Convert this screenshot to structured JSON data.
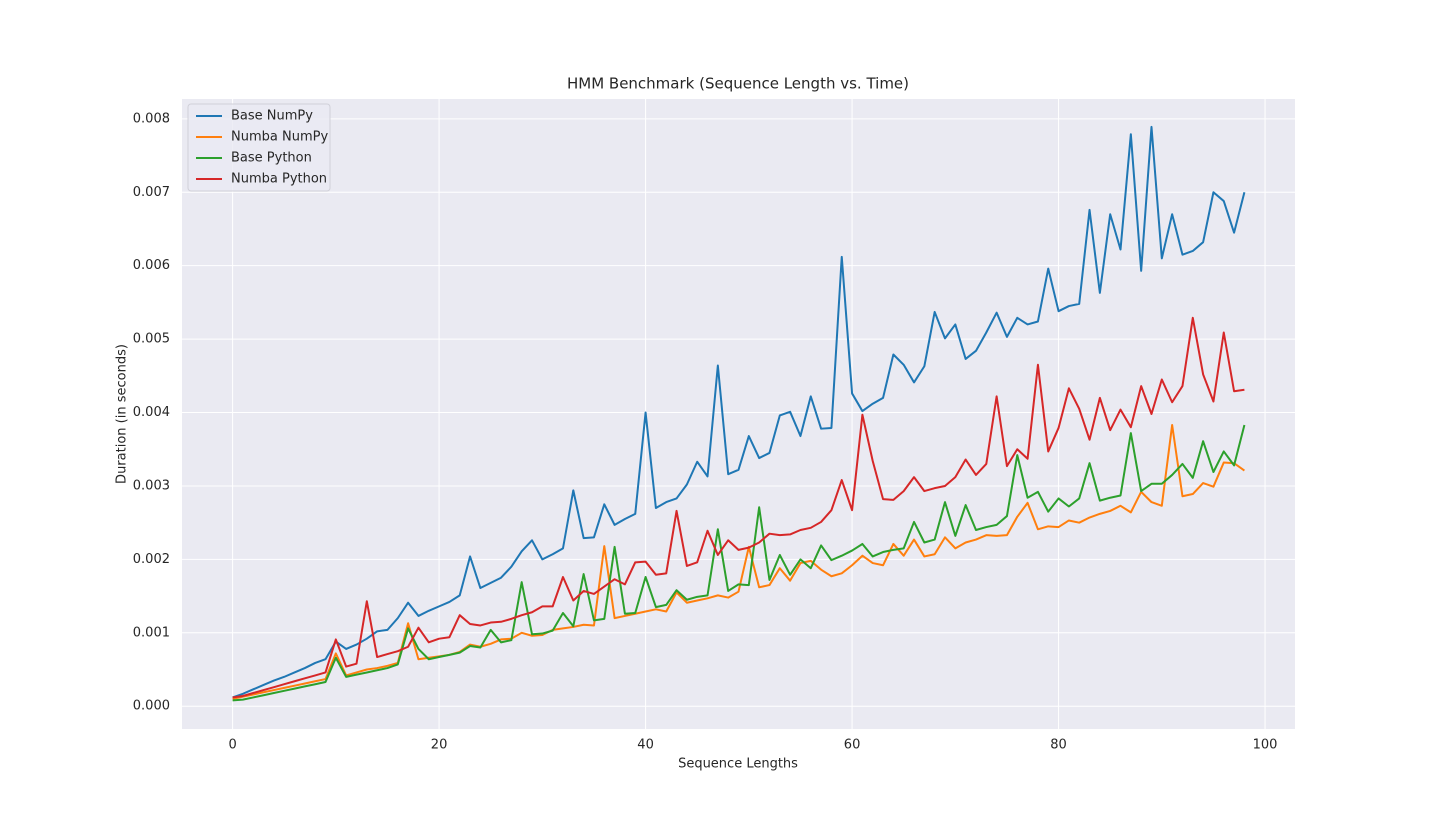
{
  "chart_data": {
    "type": "line",
    "title": "HMM Benchmark (Sequence Length vs. Time)",
    "x_label": "Sequence Lengths",
    "y_label": "Duration (in seconds)",
    "xlim": [
      -4.9,
      102.9
    ],
    "ylim": [
      -0.00031,
      0.00827
    ],
    "xticks": [
      0,
      20,
      40,
      60,
      80,
      100
    ],
    "yticks": [
      {
        "value": 0,
        "label": "0.000"
      },
      {
        "value": 0.001,
        "label": "0.001"
      },
      {
        "value": 0.002,
        "label": "0.002"
      },
      {
        "value": 0.003,
        "label": "0.003"
      },
      {
        "value": 0.004,
        "label": "0.004"
      },
      {
        "value": 0.005,
        "label": "0.005"
      },
      {
        "value": 0.006,
        "label": "0.006"
      },
      {
        "value": 0.007,
        "label": "0.007"
      },
      {
        "value": 0.008,
        "label": "0.008"
      }
    ],
    "grid": true,
    "legend": "upper left",
    "x": [
      0,
      1,
      2,
      3,
      4,
      5,
      6,
      7,
      8,
      9,
      10,
      11,
      12,
      13,
      14,
      15,
      16,
      17,
      18,
      19,
      20,
      21,
      22,
      23,
      24,
      25,
      26,
      27,
      28,
      29,
      30,
      31,
      32,
      33,
      34,
      35,
      36,
      37,
      38,
      39,
      40,
      41,
      42,
      43,
      44,
      45,
      46,
      47,
      48,
      49,
      50,
      51,
      52,
      53,
      54,
      55,
      56,
      57,
      58,
      59,
      60,
      61,
      62,
      63,
      64,
      65,
      66,
      67,
      68,
      69,
      70,
      71,
      72,
      73,
      74,
      75,
      76,
      77,
      78,
      79,
      80,
      81,
      82,
      83,
      84,
      85,
      86,
      87,
      88,
      89,
      90,
      91,
      92,
      93,
      94,
      95,
      96,
      97,
      98
    ],
    "series": [
      {
        "name": "Base NumPy",
        "color": "#1f77b4",
        "values": [
          0.00012,
          0.00017,
          0.00023,
          0.00029,
          0.00035,
          0.0004,
          0.00046,
          0.00052,
          0.00059,
          0.00064,
          0.00088,
          0.00078,
          0.00084,
          0.00092,
          0.00102,
          0.00104,
          0.0012,
          0.00141,
          0.00123,
          0.0013,
          0.00136,
          0.00142,
          0.00151,
          0.00204,
          0.00161,
          0.00168,
          0.00175,
          0.0019,
          0.00211,
          0.00226,
          0.002,
          0.00207,
          0.00215,
          0.00294,
          0.00229,
          0.0023,
          0.00275,
          0.00247,
          0.00255,
          0.00262,
          0.004,
          0.0027,
          0.00278,
          0.00283,
          0.00302,
          0.00333,
          0.00313,
          0.00464,
          0.00316,
          0.00322,
          0.00368,
          0.00338,
          0.00345,
          0.00396,
          0.00401,
          0.00368,
          0.00422,
          0.00378,
          0.00379,
          0.00612,
          0.00426,
          0.00402,
          0.00412,
          0.0042,
          0.00479,
          0.00465,
          0.00441,
          0.00463,
          0.00537,
          0.00501,
          0.0052,
          0.00473,
          0.00484,
          0.00509,
          0.00536,
          0.00503,
          0.00529,
          0.0052,
          0.00524,
          0.00596,
          0.00538,
          0.00545,
          0.00548,
          0.00676,
          0.00563,
          0.0067,
          0.00622,
          0.00779,
          0.00593,
          0.00789,
          0.0061,
          0.0067,
          0.00615,
          0.0062,
          0.00632,
          0.007,
          0.00688,
          0.00645,
          0.007
        ]
      },
      {
        "name": "Numba NumPy",
        "color": "#ff7f0e",
        "values": [
          0.0001,
          0.00013,
          0.00016,
          0.00019,
          0.00022,
          0.00025,
          0.00028,
          0.00031,
          0.00034,
          0.00037,
          0.00072,
          0.00042,
          0.00046,
          0.0005,
          0.00052,
          0.00055,
          0.00059,
          0.00113,
          0.00064,
          0.00066,
          0.00068,
          0.0007,
          0.00074,
          0.00084,
          0.00081,
          0.00085,
          0.00091,
          0.00092,
          0.001,
          0.00096,
          0.00097,
          0.00104,
          0.00106,
          0.00108,
          0.00111,
          0.0011,
          0.00218,
          0.0012,
          0.00123,
          0.00126,
          0.00129,
          0.00132,
          0.00129,
          0.00155,
          0.00141,
          0.00144,
          0.00147,
          0.00151,
          0.00148,
          0.00156,
          0.00217,
          0.00162,
          0.00165,
          0.00188,
          0.00171,
          0.00195,
          0.00198,
          0.00186,
          0.00177,
          0.00181,
          0.00192,
          0.00205,
          0.00195,
          0.00192,
          0.00221,
          0.00205,
          0.00227,
          0.00204,
          0.00207,
          0.0023,
          0.00215,
          0.00223,
          0.00227,
          0.00233,
          0.00232,
          0.00233,
          0.00258,
          0.00277,
          0.00241,
          0.00245,
          0.00244,
          0.00253,
          0.0025,
          0.00257,
          0.00262,
          0.00266,
          0.00273,
          0.00264,
          0.00292,
          0.00278,
          0.00273,
          0.00383,
          0.00286,
          0.00289,
          0.00304,
          0.00299,
          0.00332,
          0.00331,
          0.00321
        ]
      },
      {
        "name": "Base Python",
        "color": "#2ca02c",
        "values": [
          8e-05,
          9e-05,
          0.00012,
          0.00015,
          0.00018,
          0.00021,
          0.00024,
          0.00027,
          0.0003,
          0.00033,
          0.00066,
          0.0004,
          0.00043,
          0.00046,
          0.00049,
          0.00052,
          0.00057,
          0.00106,
          0.00078,
          0.00064,
          0.00067,
          0.0007,
          0.00073,
          0.00082,
          0.0008,
          0.00104,
          0.00087,
          0.0009,
          0.00169,
          0.00098,
          0.00099,
          0.00103,
          0.00127,
          0.00109,
          0.0018,
          0.00117,
          0.00119,
          0.00217,
          0.00126,
          0.00127,
          0.00176,
          0.00135,
          0.00138,
          0.00158,
          0.00145,
          0.00149,
          0.00151,
          0.00241,
          0.00157,
          0.00166,
          0.00165,
          0.00271,
          0.00172,
          0.00206,
          0.00179,
          0.002,
          0.00188,
          0.00219,
          0.00199,
          0.00205,
          0.00212,
          0.00221,
          0.00204,
          0.0021,
          0.00213,
          0.00215,
          0.00251,
          0.00223,
          0.00227,
          0.00278,
          0.00232,
          0.00274,
          0.0024,
          0.00244,
          0.00247,
          0.00259,
          0.00342,
          0.00284,
          0.00292,
          0.00265,
          0.00283,
          0.00272,
          0.00283,
          0.00331,
          0.0028,
          0.00284,
          0.00287,
          0.00372,
          0.00293,
          0.00303,
          0.00303,
          0.00315,
          0.0033,
          0.00311,
          0.00361,
          0.00319,
          0.00347,
          0.00328,
          0.00383
        ]
      },
      {
        "name": "Numba Python",
        "color": "#d62728",
        "values": [
          0.00012,
          0.00014,
          0.00018,
          0.00022,
          0.00026,
          0.0003,
          0.00034,
          0.00038,
          0.00042,
          0.00046,
          0.00091,
          0.00054,
          0.00058,
          0.00143,
          0.00067,
          0.00071,
          0.00075,
          0.00081,
          0.00107,
          0.00087,
          0.00092,
          0.00094,
          0.00124,
          0.00112,
          0.0011,
          0.00114,
          0.00115,
          0.00119,
          0.00124,
          0.00128,
          0.00136,
          0.00136,
          0.00176,
          0.00144,
          0.00157,
          0.00153,
          0.00163,
          0.00173,
          0.00166,
          0.00196,
          0.00197,
          0.00179,
          0.00181,
          0.00266,
          0.00191,
          0.00196,
          0.00239,
          0.00206,
          0.00226,
          0.00213,
          0.00216,
          0.00223,
          0.00235,
          0.00233,
          0.00234,
          0.0024,
          0.00243,
          0.00251,
          0.00267,
          0.00308,
          0.00267,
          0.00397,
          0.00334,
          0.00282,
          0.00281,
          0.00293,
          0.00312,
          0.00293,
          0.00297,
          0.003,
          0.00312,
          0.00336,
          0.00315,
          0.0033,
          0.00422,
          0.00327,
          0.0035,
          0.00337,
          0.00465,
          0.00347,
          0.00379,
          0.00433,
          0.00405,
          0.00363,
          0.0042,
          0.00376,
          0.00404,
          0.0038,
          0.00436,
          0.00398,
          0.00445,
          0.00414,
          0.00436,
          0.00529,
          0.00452,
          0.00415,
          0.00509,
          0.00429,
          0.00431
        ]
      }
    ]
  }
}
